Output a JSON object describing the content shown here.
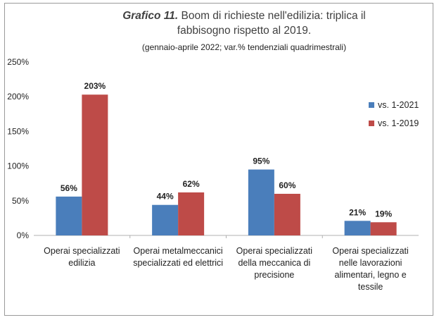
{
  "header": {
    "title_lead": "Grafico 11.",
    "title_rest": " Boom di richieste nell'edilizia: triplica il fabbisogno rispetto al 2019.",
    "subtitle": "(gennaio-aprile 2022; var.% tendenziali quadrimestrali)"
  },
  "colors": {
    "series1": "#4a7ebb",
    "series2": "#be4b48"
  },
  "chart_data": {
    "type": "bar",
    "title": "Grafico 11. Boom di richieste nell'edilizia: triplica il fabbisogno rispetto al 2019.",
    "subtitle": "(gennaio-aprile 2022; var.% tendenziali quadrimestrali)",
    "categories": [
      "Operai specializzati edilizia",
      "Operai metalmeccanici specializzati ed elettrici",
      "Operai specializzati della meccanica di precisione",
      "Operai specializzati nelle lavorazioni alimentari, legno e tessile"
    ],
    "series": [
      {
        "name": "vs. 1-2021",
        "values": [
          56,
          44,
          95,
          21
        ],
        "labels": [
          "56%",
          "44%",
          "95%",
          "21%"
        ]
      },
      {
        "name": "vs. 1-2019",
        "values": [
          203,
          62,
          60,
          19
        ],
        "labels": [
          "203%",
          "62%",
          "60%",
          "19%"
        ]
      }
    ],
    "ylim": [
      0,
      250
    ],
    "yticks": [
      0,
      50,
      100,
      150,
      200,
      250
    ],
    "ytick_labels": [
      "0%",
      "50%",
      "100%",
      "150%",
      "200%",
      "250%"
    ],
    "grid": false,
    "legend_position": "right"
  }
}
